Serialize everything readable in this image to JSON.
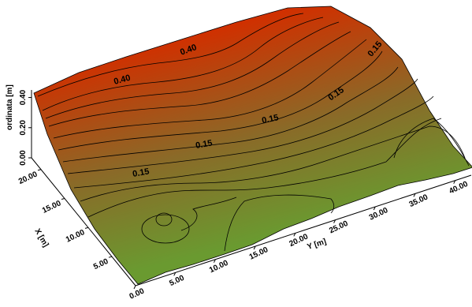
{
  "chart_data": {
    "type": "surface3d",
    "title": "",
    "xlabel": "X [m]",
    "ylabel": "Y [m]",
    "zlabel": "ordinata [m]",
    "x_ticks": [
      "5.00",
      "10.00",
      "15.00",
      "20.00"
    ],
    "y_ticks": [
      "0.00",
      "5.00",
      "10.00",
      "15.00",
      "20.00",
      "25.00",
      "30.00",
      "35.00",
      "40.00"
    ],
    "z_ticks": [
      "0.00",
      "0.20",
      "0.40"
    ],
    "xlim": [
      0,
      22
    ],
    "ylim": [
      0,
      42
    ],
    "zlim": [
      0,
      0.45
    ],
    "contour_labels": [
      {
        "text": "0.40",
        "y": 29,
        "x": 19
      },
      {
        "text": "0.40",
        "y": 17,
        "x": 20
      },
      {
        "text": "0.15",
        "y": 39,
        "x": 18
      },
      {
        "text": "0.15",
        "y": 33,
        "x": 14
      },
      {
        "text": "0.15",
        "y": 25,
        "x": 13
      },
      {
        "text": "0.15",
        "y": 18,
        "x": 13
      },
      {
        "text": "0.15",
        "y": 8,
        "x": 14
      }
    ],
    "colors": {
      "high": "#d03000",
      "mid": "#8a6a28",
      "low": "#6a9a30"
    }
  }
}
